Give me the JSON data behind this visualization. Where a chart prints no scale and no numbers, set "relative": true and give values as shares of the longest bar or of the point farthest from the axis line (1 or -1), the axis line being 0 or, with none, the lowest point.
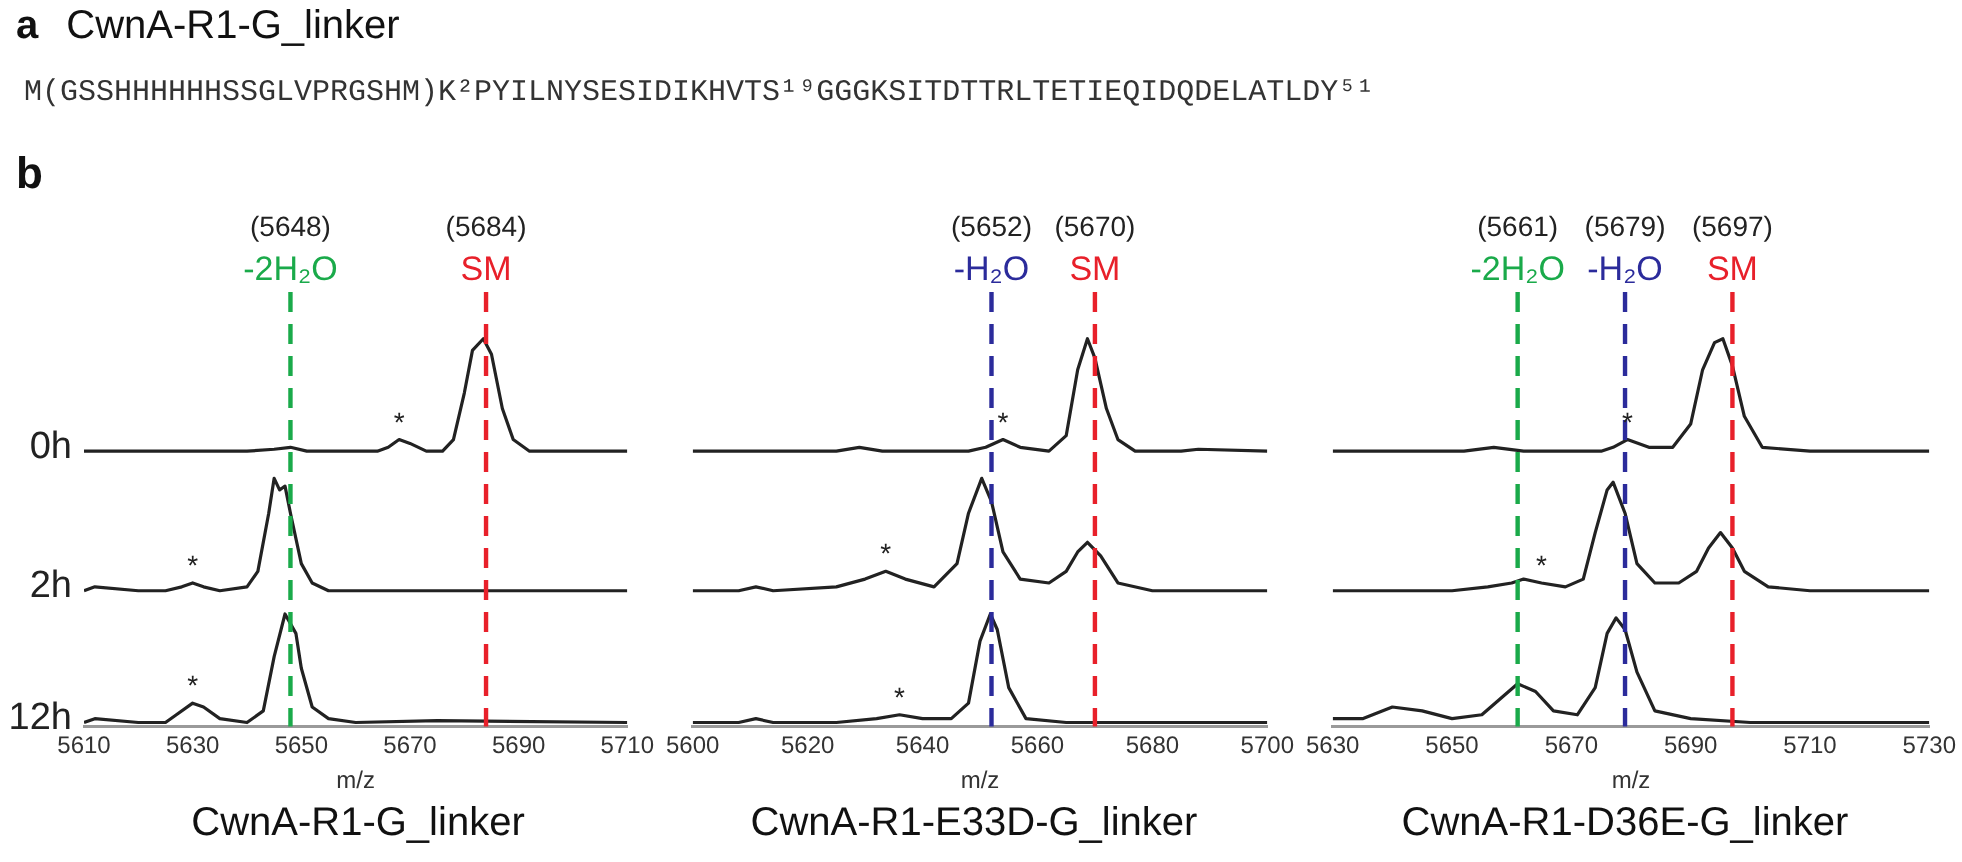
{
  "chart_data": [
    {
      "type": "line",
      "title": "CwnA-R1-G_linker",
      "xlabel": "m/z",
      "relative": true,
      "xlim": [
        5610,
        5710
      ],
      "xticks": [
        5610,
        5630,
        5650,
        5670,
        5690,
        5710
      ],
      "series": [
        {
          "name": "0h",
          "color": "#222222",
          "x": [
            5610,
            5640,
            5645,
            5648,
            5651,
            5660,
            5664,
            5666,
            5668,
            5670,
            5673,
            5676,
            5678,
            5680,
            5681.5,
            5683.5,
            5685,
            5687,
            5689,
            5692,
            5710
          ],
          "values": [
            0.71,
            0.71,
            0.715,
            0.72,
            0.71,
            0.71,
            0.71,
            0.72,
            0.74,
            0.73,
            0.71,
            0.71,
            0.74,
            0.86,
            0.97,
            1.0,
            0.96,
            0.82,
            0.74,
            0.71,
            0.71
          ]
        },
        {
          "name": "2h",
          "color": "#222222",
          "x": [
            5610,
            5612,
            5620,
            5625,
            5628,
            5630,
            5632,
            5635,
            5640,
            5642,
            5644,
            5645,
            5646,
            5647,
            5648,
            5650,
            5652,
            5655,
            5660,
            5700,
            5710
          ],
          "values": [
            0.35,
            0.36,
            0.35,
            0.35,
            0.36,
            0.37,
            0.36,
            0.35,
            0.36,
            0.4,
            0.55,
            0.64,
            0.61,
            0.62,
            0.55,
            0.42,
            0.37,
            0.35,
            0.35,
            0.35,
            0.35
          ]
        },
        {
          "name": "12h",
          "color": "#222222",
          "x": [
            5610,
            5612,
            5620,
            5625,
            5627,
            5630,
            5632,
            5635,
            5640,
            5643,
            5645,
            5647,
            5649,
            5650,
            5652,
            5655,
            5660,
            5675,
            5710
          ],
          "values": [
            0.01,
            0.02,
            0.01,
            0.01,
            0.03,
            0.06,
            0.05,
            0.02,
            0.01,
            0.04,
            0.18,
            0.29,
            0.24,
            0.15,
            0.05,
            0.02,
            0.01,
            0.015,
            0.01
          ]
        }
      ],
      "ref_lines": [
        {
          "axis": "x",
          "value": 5648,
          "label": "(5648)\n-2H₂O",
          "color": "#1aaa4a",
          "line_style": "dashed"
        },
        {
          "axis": "x",
          "value": 5684,
          "label": "(5684)\nSM",
          "color": "#e8202a",
          "line_style": "dashed"
        }
      ],
      "annotations": [
        "a",
        "CwnA-R1-G_linker",
        "M(GSSHHHHHHSSGLVPRGSHM)K²PYILNYSESIDIKHVTS¹⁹GGGKSITDTTRLTETIEQIDQDELATLDY⁵¹",
        "b",
        {
          "text": "*",
          "x": 5668,
          "y": 0.74
        },
        {
          "text": "*",
          "x": 5630,
          "y": 0.37
        },
        {
          "text": "*",
          "x": 5630,
          "y": 0.06
        }
      ]
    },
    {
      "type": "line",
      "title": "CwnA-R1-E33D-G_linker",
      "xlabel": "m/z",
      "relative": true,
      "xlim": [
        5600,
        5700
      ],
      "xticks": [
        5600,
        5620,
        5640,
        5660,
        5680,
        5700
      ],
      "series": [
        {
          "color": "#222222",
          "x": [
            5600,
            5625,
            5629,
            5633,
            5648,
            5651,
            5654,
            5657,
            5662,
            5665,
            5667,
            5668.7,
            5670,
            5672,
            5674,
            5677,
            5685,
            5688,
            5700
          ],
          "values": [
            0.71,
            0.71,
            0.72,
            0.71,
            0.71,
            0.72,
            0.74,
            0.72,
            0.71,
            0.75,
            0.92,
            1.0,
            0.95,
            0.82,
            0.74,
            0.71,
            0.71,
            0.715,
            0.71
          ]
        },
        {
          "color": "#222222",
          "x": [
            5600,
            5608,
            5611,
            5614,
            5625,
            5630,
            5633.6,
            5637,
            5642,
            5646,
            5648,
            5650.3,
            5652,
            5654,
            5657,
            5662,
            5665,
            5667,
            5668.7,
            5671,
            5674,
            5680,
            5700
          ],
          "values": [
            0.35,
            0.35,
            0.36,
            0.35,
            0.36,
            0.38,
            0.4,
            0.38,
            0.36,
            0.42,
            0.55,
            0.64,
            0.58,
            0.45,
            0.38,
            0.37,
            0.4,
            0.45,
            0.475,
            0.44,
            0.37,
            0.35,
            0.35
          ]
        },
        {
          "color": "#222222",
          "x": [
            5600,
            5608,
            5611,
            5614,
            5625,
            5632,
            5636,
            5640,
            5645,
            5648,
            5650,
            5651.8,
            5653,
            5655,
            5658,
            5665,
            5700
          ],
          "values": [
            0.01,
            0.01,
            0.02,
            0.01,
            0.01,
            0.02,
            0.03,
            0.02,
            0.02,
            0.06,
            0.22,
            0.29,
            0.25,
            0.1,
            0.02,
            0.01,
            0.01
          ]
        }
      ],
      "ref_lines": [
        {
          "axis": "x",
          "value": 5652,
          "label": "(5652)\n-H₂O",
          "color": "#2b2b9b",
          "line_style": "dashed"
        },
        {
          "axis": "x",
          "value": 5670,
          "label": "(5670)\nSM",
          "color": "#e8202a",
          "line_style": "dashed"
        }
      ],
      "annotations": [
        {
          "text": "*",
          "x": 5654,
          "y": 0.74
        },
        {
          "text": "*",
          "x": 5633.6,
          "y": 0.4
        },
        {
          "text": "*",
          "x": 5636,
          "y": 0.03
        }
      ]
    },
    {
      "type": "line",
      "title": "CwnA-R1-D36E-G_linker",
      "xlabel": "m/z",
      "relative": true,
      "xlim": [
        5630,
        5730
      ],
      "xticks": [
        5630,
        5650,
        5670,
        5690,
        5710,
        5730
      ],
      "series": [
        {
          "color": "#222222",
          "x": [
            5630,
            5652,
            5657,
            5662,
            5675,
            5677,
            5679.4,
            5683,
            5687,
            5690,
            5692,
            5694,
            5695.4,
            5697,
            5699,
            5702,
            5710,
            5730
          ],
          "values": [
            0.71,
            0.71,
            0.72,
            0.71,
            0.71,
            0.72,
            0.74,
            0.72,
            0.72,
            0.78,
            0.92,
            0.99,
            1.0,
            0.93,
            0.8,
            0.72,
            0.71,
            0.71
          ]
        },
        {
          "color": "#222222",
          "x": [
            5630,
            5650,
            5656,
            5660,
            5662,
            5665,
            5669,
            5672,
            5674,
            5676,
            5677,
            5679,
            5681,
            5684,
            5688,
            5691,
            5693,
            5695,
            5697,
            5699,
            5703,
            5710,
            5730
          ],
          "values": [
            0.35,
            0.35,
            0.36,
            0.37,
            0.38,
            0.37,
            0.36,
            0.38,
            0.5,
            0.61,
            0.63,
            0.55,
            0.42,
            0.37,
            0.37,
            0.4,
            0.46,
            0.5,
            0.46,
            0.4,
            0.36,
            0.35,
            0.35
          ]
        },
        {
          "color": "#222222",
          "x": [
            5630,
            5635,
            5640,
            5645,
            5650,
            5655,
            5658,
            5661,
            5664,
            5667,
            5671,
            5674,
            5676,
            5677.5,
            5679,
            5681,
            5684,
            5690,
            5700,
            5730
          ],
          "values": [
            0.02,
            0.02,
            0.05,
            0.04,
            0.02,
            0.03,
            0.07,
            0.11,
            0.09,
            0.04,
            0.03,
            0.1,
            0.24,
            0.28,
            0.25,
            0.14,
            0.04,
            0.02,
            0.01,
            0.01
          ]
        }
      ],
      "ref_lines": [
        {
          "axis": "x",
          "value": 5661,
          "label": "(5661)\n-2H₂O",
          "color": "#1aaa4a",
          "line_style": "dashed"
        },
        {
          "axis": "x",
          "value": 5679,
          "label": "(5679)\n-H₂O",
          "color": "#2b2b9b",
          "line_style": "dashed"
        },
        {
          "axis": "x",
          "value": 5697,
          "label": "(5697)\nSM",
          "color": "#e8202a",
          "line_style": "dashed"
        }
      ],
      "annotations": [
        {
          "text": "*",
          "x": 5679.4,
          "y": 0.74
        },
        {
          "text": "*",
          "x": 5665,
          "y": 0.37
        }
      ]
    }
  ]
}
